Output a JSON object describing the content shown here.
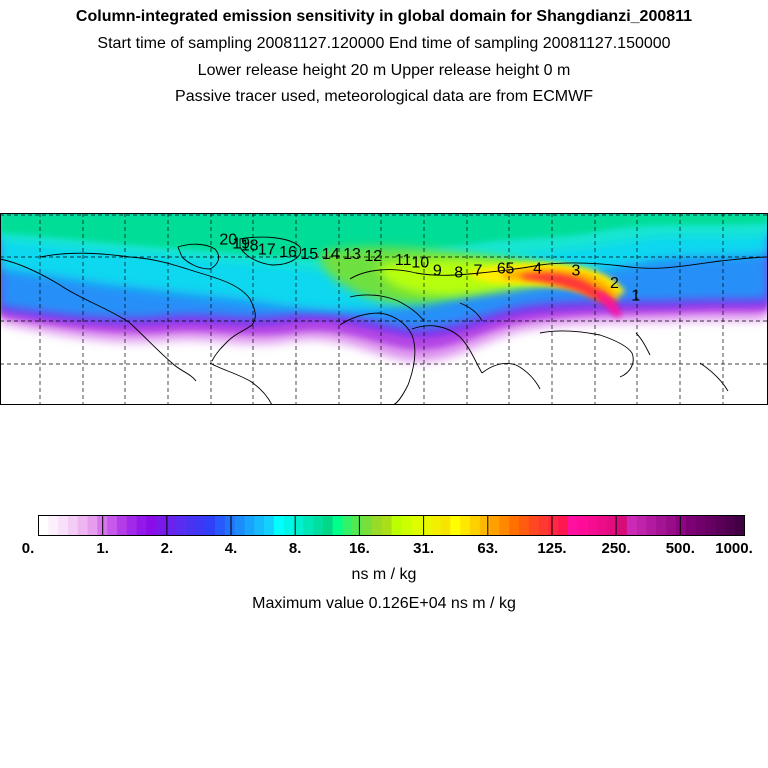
{
  "header": {
    "title": "Column-integrated emission sensitivity in global domain for Shangdianzi_200811",
    "sampling_line": "Start time of sampling 20081127.120000     End time of sampling 20081127.150000",
    "release_line": "Lower release height   20 m          Upper release height    0 m",
    "tracer_line": "Passive tracer used, meteorological data are from ECMWF"
  },
  "map": {
    "track_labels": [
      {
        "n": "1",
        "lon": 118,
        "lat": 40
      },
      {
        "n": "2",
        "lon": 108,
        "lat": 46
      },
      {
        "n": "3",
        "lon": 90,
        "lat": 52
      },
      {
        "n": "4",
        "lon": 72,
        "lat": 53
      },
      {
        "n": "5",
        "lon": 59,
        "lat": 53
      },
      {
        "n": "6",
        "lon": 55,
        "lat": 53
      },
      {
        "n": "7",
        "lon": 44,
        "lat": 52
      },
      {
        "n": "8",
        "lon": 35,
        "lat": 51
      },
      {
        "n": "9",
        "lon": 25,
        "lat": 52
      },
      {
        "n": "10",
        "lon": 17,
        "lat": 56
      },
      {
        "n": "11",
        "lon": 9,
        "lat": 57
      },
      {
        "n": "12",
        "lon": -5,
        "lat": 59
      },
      {
        "n": "13",
        "lon": -15,
        "lat": 60
      },
      {
        "n": "14",
        "lon": -25,
        "lat": 60
      },
      {
        "n": "15",
        "lon": -35,
        "lat": 60
      },
      {
        "n": "16",
        "lon": -45,
        "lat": 61
      },
      {
        "n": "17",
        "lon": -55,
        "lat": 62
      },
      {
        "n": "18",
        "lon": -63,
        "lat": 64
      },
      {
        "n": "19",
        "lon": -67,
        "lat": 65
      },
      {
        "n": "20",
        "lon": -73,
        "lat": 67
      }
    ]
  },
  "colorbar": {
    "ticks": [
      "0.",
      "1.",
      "2.",
      "4.",
      "8.",
      "16.",
      "31.",
      "63.",
      "125.",
      "250.",
      "500.",
      "1000."
    ],
    "colors": [
      "#ffffff",
      "#fdf0fd",
      "#f9e0fa",
      "#f4ccf6",
      "#eeb6f1",
      "#e79ded",
      "#d676ec",
      "#c658ec",
      "#b43de9",
      "#a328e9",
      "#9418e9",
      "#8a0ce9",
      "#7a18ea",
      "#6a23ec",
      "#5a2bf0",
      "#4a32f3",
      "#3c38f6",
      "#3040f8",
      "#2859fa",
      "#2272fb",
      "#1c8bfc",
      "#18a3fd",
      "#16bafd",
      "#14d0fd",
      "#00ffff",
      "#00f7e7",
      "#00efcf",
      "#00e7b7",
      "#00df9f",
      "#00d787",
      "#00ff88",
      "#33f26a",
      "#55e84f",
      "#77df3a",
      "#99d928",
      "#aade18",
      "#bbff00",
      "#ccff00",
      "#ddff00",
      "#e8f800",
      "#f2f000",
      "#f7e500",
      "#ffff00",
      "#ffe800",
      "#ffd000",
      "#ffb800",
      "#ffa000",
      "#ff8800",
      "#ff7000",
      "#ff5c10",
      "#ff4820",
      "#ff3830",
      "#ff2840",
      "#ff1850",
      "#ff10a0",
      "#ff0c98",
      "#f60c90",
      "#ec0c88",
      "#e20c80",
      "#d80c78",
      "#cc2ab6",
      "#bf22ab",
      "#b21aa0",
      "#a51395",
      "#980c8a",
      "#8b0680",
      "#7e0076",
      "#72006c",
      "#660062",
      "#5a0058",
      "#4e004e",
      "#420044"
    ],
    "units": "ns m / kg",
    "max_value": "Maximum value  0.126E+04 ns m / kg"
  }
}
